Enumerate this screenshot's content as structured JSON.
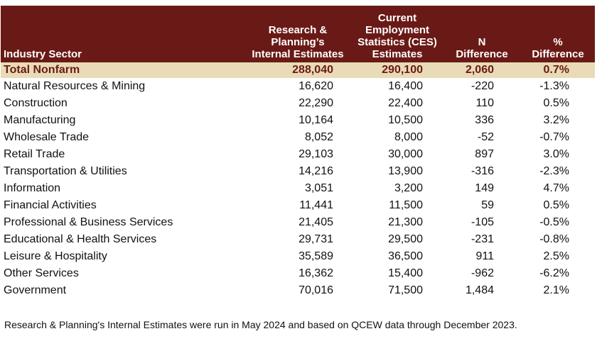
{
  "headers": {
    "sector": "Industry Sector",
    "internal": [
      "Research &",
      "Planning’s",
      "Internal Estimates"
    ],
    "ces": [
      "Current",
      "Employment",
      "Statistics (CES)",
      "Estimates"
    ],
    "n_diff": [
      "N",
      "Difference"
    ],
    "pct_diff": [
      "%",
      "Difference"
    ]
  },
  "rows": [
    {
      "sector": "Total Nonfarm",
      "internal": "288,040",
      "ces": "290,100",
      "n_diff": "2,060",
      "pct_diff": "0.7%"
    },
    {
      "sector": "Natural Resources & Mining",
      "internal": "16,620",
      "ces": "16,400",
      "n_diff": "-220",
      "pct_diff": "-1.3%"
    },
    {
      "sector": "Construction",
      "internal": "22,290",
      "ces": "22,400",
      "n_diff": "110",
      "pct_diff": "0.5%"
    },
    {
      "sector": "Manufacturing",
      "internal": "10,164",
      "ces": "10,500",
      "n_diff": "336",
      "pct_diff": "3.2%"
    },
    {
      "sector": "Wholesale Trade",
      "internal": "8,052",
      "ces": "8,000",
      "n_diff": "-52",
      "pct_diff": "-0.7%"
    },
    {
      "sector": "Retail Trade",
      "internal": "29,103",
      "ces": "30,000",
      "n_diff": "897",
      "pct_diff": "3.0%"
    },
    {
      "sector": "Transportation & Utilities",
      "internal": "14,216",
      "ces": "13,900",
      "n_diff": "-316",
      "pct_diff": "-2.3%"
    },
    {
      "sector": "Information",
      "internal": "3,051",
      "ces": "3,200",
      "n_diff": "149",
      "pct_diff": "4.7%"
    },
    {
      "sector": "Financial Activities",
      "internal": "11,441",
      "ces": "11,500",
      "n_diff": "59",
      "pct_diff": "0.5%"
    },
    {
      "sector": "Professional & Business Services",
      "internal": "21,405",
      "ces": "21,300",
      "n_diff": "-105",
      "pct_diff": "-0.5%"
    },
    {
      "sector": "Educational & Health Services",
      "internal": "29,731",
      "ces": "29,500",
      "n_diff": "-231",
      "pct_diff": "-0.8%"
    },
    {
      "sector": "Leisure & Hospitality",
      "internal": "35,589",
      "ces": "36,500",
      "n_diff": "911",
      "pct_diff": "2.5%"
    },
    {
      "sector": "Other Services",
      "internal": "16,362",
      "ces": "15,400",
      "n_diff": "-962",
      "pct_diff": "-6.2%"
    },
    {
      "sector": "Government",
      "internal": "70,016",
      "ces": "71,500",
      "n_diff": "1,484",
      "pct_diff": "2.1%"
    }
  ],
  "note": "Research & Planning's Internal Estimates were run in May 2024 and based on QCEW data through December 2023.",
  "colors": {
    "header_bg": "#6a1a16",
    "total_bg": "#e9dbb6",
    "total_text": "#6a1a16"
  }
}
